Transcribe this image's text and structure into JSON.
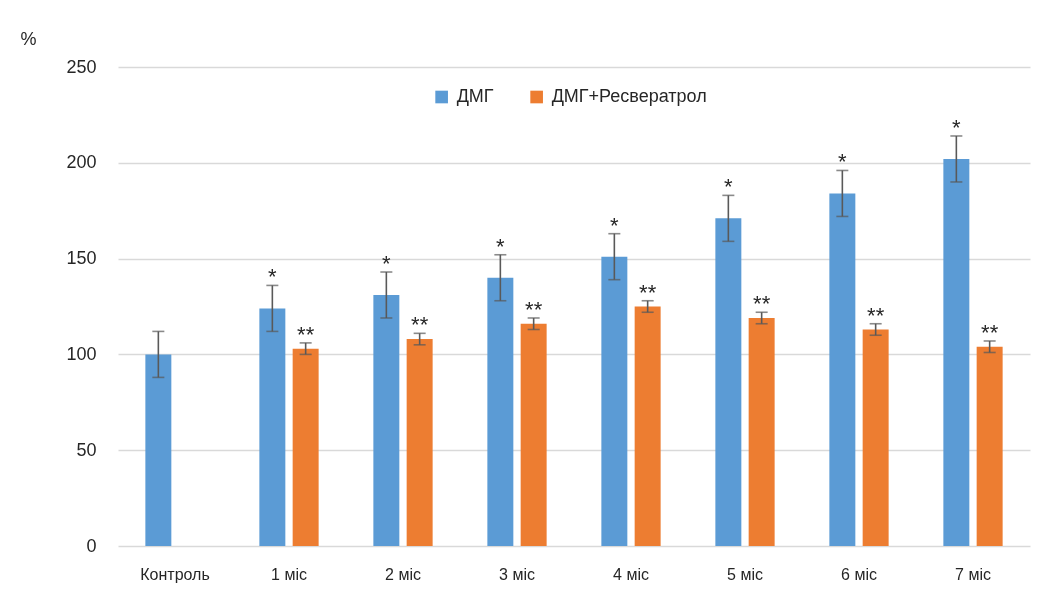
{
  "chart_data": {
    "type": "bar",
    "ylabel": "%",
    "categories": [
      "Контроль",
      "1 міс",
      "2 міс",
      "3 міс",
      "4 міс",
      "5 міс",
      "6 міс",
      "7 міс"
    ],
    "series": [
      {
        "name": "ДМГ",
        "color": "#5b9bd5",
        "values": [
          100,
          124,
          131,
          140,
          151,
          171,
          184,
          202
        ],
        "errors": [
          12,
          12,
          12,
          12,
          12,
          12,
          12,
          12
        ]
      },
      {
        "name": "ДМГ+Ресвератрол",
        "color": "#ed7d31",
        "values": [
          null,
          103,
          108,
          116,
          125,
          119,
          113,
          104
        ],
        "errors": [
          null,
          3,
          3,
          3,
          3,
          3,
          3,
          3
        ]
      }
    ],
    "ylim": [
      0,
      250
    ],
    "yticks": [
      0,
      50,
      100,
      150,
      200,
      250
    ],
    "grid": "y",
    "legend": "top",
    "annotations": [
      {
        "text": "*",
        "x": "1 міс",
        "y": 124
      },
      {
        "text": "**",
        "x": "1 міс",
        "y": 103
      },
      {
        "text": "*",
        "x": "2 міс",
        "y": 131
      },
      {
        "text": "**",
        "x": "2 міс",
        "y": 108
      },
      {
        "text": "*",
        "x": "3 міс",
        "y": 140
      },
      {
        "text": "**",
        "x": "3 міс",
        "y": 116
      },
      {
        "text": "*",
        "x": "4 міс",
        "y": 151
      },
      {
        "text": "**",
        "x": "4 міс",
        "y": 125
      },
      {
        "text": "*",
        "x": "5 міс",
        "y": 171
      },
      {
        "text": "**",
        "x": "5 міс",
        "y": 119
      },
      {
        "text": "*",
        "x": "6 міс",
        "y": 184
      },
      {
        "text": "**",
        "x": "6 міс",
        "y": 113
      },
      {
        "text": "*",
        "x": "7 міс",
        "y": 202
      },
      {
        "text": "**",
        "x": "7 міс",
        "y": 104
      }
    ]
  }
}
